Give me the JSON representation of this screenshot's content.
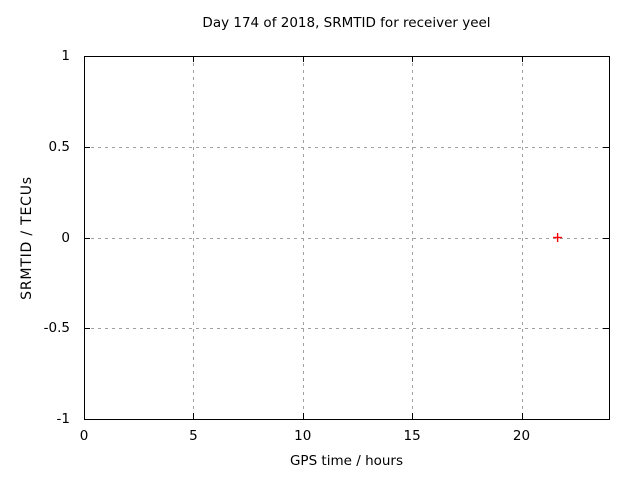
{
  "chart_data": {
    "type": "scatter",
    "title": "Day 174 of 2018, SRMTID for receiver yeel",
    "xlabel": "GPS time / hours",
    "ylabel": "SRMTID / TECUs",
    "xlim": [
      0,
      24
    ],
    "ylim": [
      -1,
      1
    ],
    "xticks": [
      0,
      5,
      10,
      15,
      20
    ],
    "xtick_labels": [
      "0",
      "5",
      "10",
      "15",
      "20"
    ],
    "yticks": [
      -1,
      -0.5,
      0,
      0.5,
      1
    ],
    "ytick_labels": [
      "-1",
      "-0.5",
      "0",
      "0.5",
      "1"
    ],
    "grid": true,
    "grid_style": "dashed",
    "legend": "none",
    "series": [
      {
        "name": "SRMTID",
        "marker": "plus",
        "color": "#ff0000",
        "x": [
          21.65
        ],
        "y": [
          0
        ]
      }
    ],
    "colors": {
      "background": "#ffffff",
      "axis": "#000000",
      "grid": "#a0a0a0",
      "text": "#000000",
      "marker": "#ff0000"
    }
  }
}
